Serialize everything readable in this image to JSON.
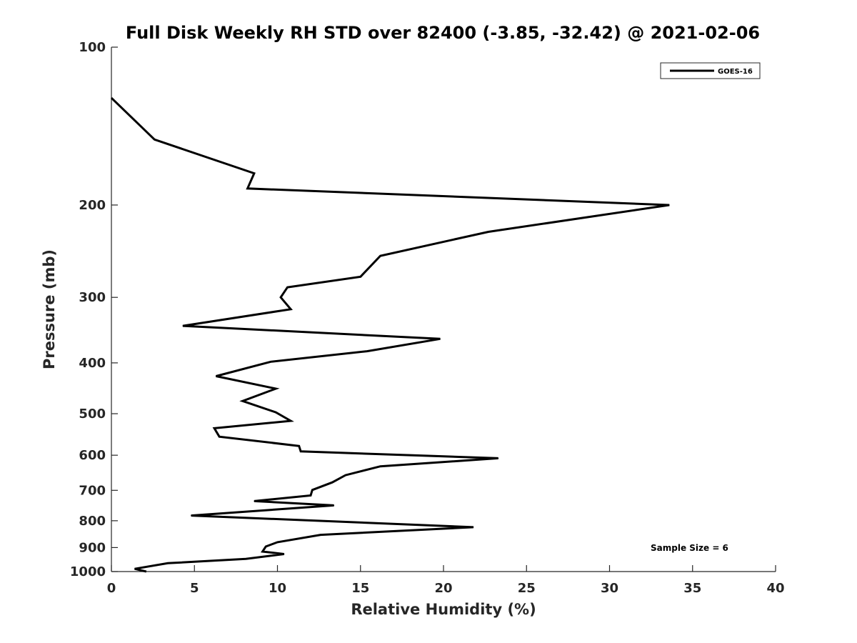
{
  "chart_data": {
    "type": "line",
    "title": "Full Disk Weekly RH STD over 82400 (-3.85, -32.42) @ 2021-02-06",
    "xlabel": "Relative Humidity (%)",
    "ylabel": "Pressure (mb)",
    "xlim": [
      0,
      40
    ],
    "ylim": [
      100,
      1000
    ],
    "y_scale": "log",
    "y_reversed": true,
    "grid": false,
    "legend_position": "top-right",
    "x_ticks": [
      "0",
      "5",
      "10",
      "15",
      "20",
      "25",
      "30",
      "35",
      "40"
    ],
    "y_ticks": [
      "100",
      "200",
      "300",
      "400",
      "500",
      "600",
      "700",
      "800",
      "900",
      "1000"
    ],
    "annotation": "Sample Size = 6",
    "series": [
      {
        "name": "GOES-16",
        "color": "#000000",
        "points": [
          [
            0.0,
            125
          ],
          [
            2.6,
            150
          ],
          [
            8.6,
            174
          ],
          [
            8.2,
            186
          ],
          [
            33.6,
            200
          ],
          [
            22.7,
            225
          ],
          [
            16.2,
            250
          ],
          [
            15.0,
            274
          ],
          [
            10.6,
            287
          ],
          [
            10.2,
            300
          ],
          [
            10.8,
            316
          ],
          [
            4.3,
            340
          ],
          [
            19.8,
            360
          ],
          [
            15.4,
            380
          ],
          [
            9.6,
            398
          ],
          [
            6.3,
            424
          ],
          [
            9.9,
            448
          ],
          [
            7.9,
            473
          ],
          [
            9.9,
            497
          ],
          [
            10.8,
            516
          ],
          [
            6.2,
            533
          ],
          [
            6.5,
            553
          ],
          [
            11.3,
            576
          ],
          [
            11.4,
            590
          ],
          [
            23.3,
            608
          ],
          [
            16.2,
            630
          ],
          [
            14.1,
            655
          ],
          [
            13.3,
            676
          ],
          [
            12.1,
            699
          ],
          [
            12.0,
            716
          ],
          [
            8.6,
            734
          ],
          [
            13.4,
            748
          ],
          [
            4.8,
            782
          ],
          [
            21.8,
            823
          ],
          [
            12.6,
            851
          ],
          [
            10.0,
            879
          ],
          [
            9.3,
            896
          ],
          [
            9.1,
            916
          ],
          [
            10.4,
            926
          ],
          [
            8.1,
            946
          ],
          [
            3.4,
            964
          ],
          [
            1.4,
            988
          ],
          [
            2.1,
            1000
          ]
        ]
      }
    ]
  }
}
